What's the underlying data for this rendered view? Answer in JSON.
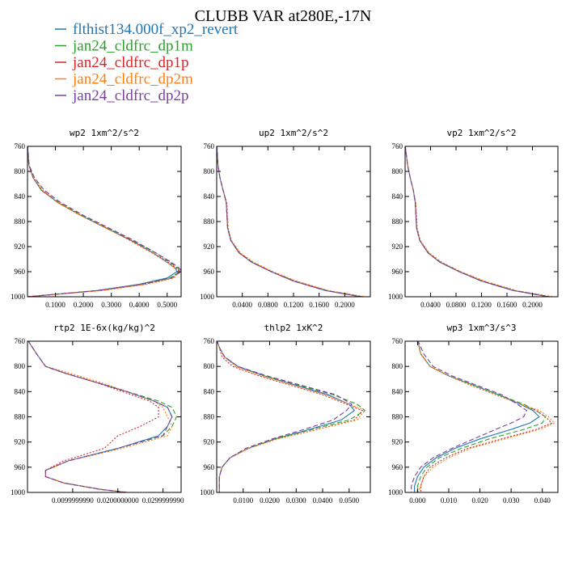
{
  "figure_title": "CLUBB VAR at280E,-17N",
  "colors": [
    "#1f77b4",
    "#2ca02c",
    "#d62728",
    "#ff7f0e",
    "#7b3fa0"
  ],
  "legend": [
    "flthist134.000f_xp2_revert",
    "jan24_cldfrc_dp1m",
    "jan24_cldfrc_dp1p",
    "jan24_cldfrc_dp2m",
    "jan24_cldfrc_dp2p"
  ],
  "chart_data": [
    {
      "type": "line",
      "title": "wp2  1xm^2/s^2",
      "xlim": [
        0,
        0.55
      ],
      "ylim": [
        760,
        1000
      ],
      "y_ticks": [
        760,
        800,
        840,
        880,
        920,
        960,
        1000
      ],
      "y_tick_labels": [
        "760",
        "800",
        "840",
        "880",
        "920",
        "960",
        "1000"
      ],
      "x_ticks": [
        0.1,
        0.2,
        0.3,
        0.4,
        0.5
      ],
      "x_tick_labels": [
        "0.1000",
        "0.2000",
        "0.3000",
        "0.4000",
        "0.5000"
      ],
      "y": [
        758,
        790,
        810,
        830,
        850,
        870,
        890,
        910,
        930,
        945,
        955,
        960,
        970,
        980,
        990,
        1000
      ],
      "series": [
        {
          "x": [
            0.0,
            0.005,
            0.02,
            0.05,
            0.11,
            0.19,
            0.28,
            0.37,
            0.45,
            0.5,
            0.53,
            0.535,
            0.5,
            0.4,
            0.25,
            0.0
          ]
        },
        {
          "x": [
            0.0,
            0.005,
            0.02,
            0.05,
            0.115,
            0.195,
            0.285,
            0.375,
            0.46,
            0.51,
            0.54,
            0.545,
            0.51,
            0.41,
            0.25,
            0.0
          ]
        },
        {
          "x": [
            0.0,
            0.005,
            0.02,
            0.05,
            0.11,
            0.19,
            0.28,
            0.37,
            0.45,
            0.505,
            0.535,
            0.545,
            0.52,
            0.42,
            0.26,
            0.0
          ]
        },
        {
          "x": [
            0.0,
            0.005,
            0.022,
            0.055,
            0.112,
            0.19,
            0.28,
            0.365,
            0.445,
            0.5,
            0.53,
            0.54,
            0.525,
            0.43,
            0.27,
            0.0
          ]
        },
        {
          "x": [
            0.0,
            0.006,
            0.025,
            0.06,
            0.12,
            0.2,
            0.29,
            0.38,
            0.46,
            0.515,
            0.545,
            0.55,
            0.515,
            0.41,
            0.25,
            0.0
          ]
        }
      ]
    },
    {
      "type": "line",
      "title": "up2  1xm^2/s^2",
      "xlim": [
        0,
        0.24
      ],
      "ylim": [
        760,
        1000
      ],
      "y_ticks": [
        760,
        800,
        840,
        880,
        920,
        960,
        1000
      ],
      "y_tick_labels": [
        "760",
        "800",
        "840",
        "880",
        "920",
        "960",
        "1000"
      ],
      "x_ticks": [
        0.04,
        0.08,
        0.12,
        0.16,
        0.2
      ],
      "x_tick_labels": [
        "0.0400",
        "0.0800",
        "0.1200",
        "0.1600",
        "0.2000"
      ],
      "y": [
        758,
        790,
        810,
        830,
        850,
        870,
        890,
        910,
        930,
        945,
        960,
        975,
        990,
        1000
      ],
      "series": [
        {
          "x": [
            0.0,
            0.002,
            0.005,
            0.01,
            0.015,
            0.016,
            0.017,
            0.022,
            0.035,
            0.055,
            0.085,
            0.12,
            0.17,
            0.225
          ]
        },
        {
          "x": [
            0.0,
            0.002,
            0.005,
            0.01,
            0.015,
            0.016,
            0.017,
            0.022,
            0.036,
            0.056,
            0.086,
            0.122,
            0.172,
            0.228
          ]
        },
        {
          "x": [
            0.0,
            0.002,
            0.005,
            0.01,
            0.015,
            0.016,
            0.017,
            0.022,
            0.035,
            0.055,
            0.086,
            0.121,
            0.171,
            0.227
          ]
        },
        {
          "x": [
            0.0,
            0.002,
            0.005,
            0.01,
            0.016,
            0.017,
            0.018,
            0.023,
            0.037,
            0.058,
            0.088,
            0.125,
            0.175,
            0.232
          ]
        },
        {
          "x": [
            0.0,
            0.002,
            0.005,
            0.01,
            0.015,
            0.016,
            0.017,
            0.022,
            0.035,
            0.055,
            0.085,
            0.12,
            0.17,
            0.226
          ]
        }
      ]
    },
    {
      "type": "line",
      "title": "vp2  1xm^2/s^2",
      "xlim": [
        0,
        0.24
      ],
      "ylim": [
        760,
        1000
      ],
      "y_ticks": [
        760,
        800,
        840,
        880,
        920,
        960,
        1000
      ],
      "y_tick_labels": [
        "760",
        "800",
        "840",
        "880",
        "920",
        "960",
        "1000"
      ],
      "x_ticks": [
        0.04,
        0.08,
        0.12,
        0.16,
        0.2
      ],
      "x_tick_labels": [
        "0.0400",
        "0.0800",
        "0.1200",
        "0.1600",
        "0.2000"
      ],
      "y": [
        758,
        790,
        810,
        830,
        850,
        870,
        890,
        910,
        930,
        945,
        960,
        975,
        990,
        1000
      ],
      "series": [
        {
          "x": [
            0.0,
            0.004,
            0.008,
            0.013,
            0.016,
            0.017,
            0.018,
            0.023,
            0.036,
            0.055,
            0.085,
            0.12,
            0.17,
            0.225
          ]
        },
        {
          "x": [
            0.0,
            0.004,
            0.008,
            0.013,
            0.016,
            0.017,
            0.018,
            0.023,
            0.037,
            0.056,
            0.086,
            0.122,
            0.172,
            0.228
          ]
        },
        {
          "x": [
            0.0,
            0.004,
            0.008,
            0.013,
            0.016,
            0.017,
            0.018,
            0.023,
            0.036,
            0.055,
            0.086,
            0.121,
            0.171,
            0.227
          ]
        },
        {
          "x": [
            0.0,
            0.004,
            0.008,
            0.013,
            0.017,
            0.018,
            0.019,
            0.024,
            0.038,
            0.058,
            0.088,
            0.125,
            0.175,
            0.232
          ]
        },
        {
          "x": [
            0.0,
            0.004,
            0.008,
            0.013,
            0.016,
            0.017,
            0.018,
            0.023,
            0.036,
            0.055,
            0.085,
            0.12,
            0.17,
            0.226
          ]
        }
      ]
    },
    {
      "type": "line",
      "title": "rtp2  1E-6x(kg/kg)^2",
      "xlim": [
        0,
        0.034
      ],
      "ylim": [
        760,
        1000
      ],
      "y_ticks": [
        760,
        800,
        840,
        880,
        920,
        960,
        1000
      ],
      "y_tick_labels": [
        "760",
        "800",
        "840",
        "880",
        "920",
        "960",
        "1000"
      ],
      "x_ticks": [
        0.01,
        0.02,
        0.03
      ],
      "x_tick_labels": [
        "0.0099999990",
        "0.0200000000",
        "0.0299999990"
      ],
      "y": [
        758,
        780,
        800,
        810,
        825,
        840,
        855,
        865,
        880,
        895,
        910,
        930,
        950,
        965,
        975,
        985,
        995,
        1000
      ],
      "series": [
        {
          "x": [
            0.0,
            0.002,
            0.004,
            0.008,
            0.015,
            0.022,
            0.028,
            0.031,
            0.032,
            0.031,
            0.029,
            0.02,
            0.009,
            0.004,
            0.004,
            0.008,
            0.016,
            0.022
          ]
        },
        {
          "x": [
            0.0,
            0.002,
            0.004,
            0.008,
            0.015,
            0.022,
            0.029,
            0.032,
            0.033,
            0.032,
            0.03,
            0.02,
            0.009,
            0.004,
            0.004,
            0.008,
            0.016,
            0.022
          ]
        },
        {
          "x": [
            0.0,
            0.002,
            0.004,
            0.008,
            0.015,
            0.021,
            0.027,
            0.029,
            0.029,
            0.025,
            0.02,
            0.017,
            0.008,
            0.004,
            0.004,
            0.008,
            0.016,
            0.022
          ]
        },
        {
          "x": [
            0.0,
            0.002,
            0.004,
            0.009,
            0.016,
            0.022,
            0.028,
            0.03,
            0.031,
            0.032,
            0.031,
            0.021,
            0.009,
            0.004,
            0.004,
            0.008,
            0.016,
            0.022
          ]
        },
        {
          "x": [
            0.0,
            0.002,
            0.004,
            0.008,
            0.015,
            0.022,
            0.028,
            0.031,
            0.032,
            0.031,
            0.03,
            0.02,
            0.009,
            0.004,
            0.004,
            0.008,
            0.016,
            0.022
          ]
        }
      ]
    },
    {
      "type": "line",
      "title": "thlp2  1xK^2",
      "xlim": [
        0,
        0.058
      ],
      "ylim": [
        760,
        1000
      ],
      "y_ticks": [
        760,
        800,
        840,
        880,
        920,
        960,
        1000
      ],
      "y_tick_labels": [
        "760",
        "800",
        "840",
        "880",
        "920",
        "960",
        "1000"
      ],
      "x_ticks": [
        0.01,
        0.02,
        0.03,
        0.04,
        0.05
      ],
      "x_tick_labels": [
        "0.0100",
        "0.0200",
        "0.0300",
        "0.0400",
        "0.0500"
      ],
      "y": [
        758,
        770,
        785,
        800,
        815,
        830,
        845,
        860,
        870,
        885,
        900,
        915,
        930,
        945,
        960,
        975,
        990,
        1000
      ],
      "series": [
        {
          "x": [
            0.0,
            0.001,
            0.003,
            0.008,
            0.018,
            0.03,
            0.042,
            0.05,
            0.052,
            0.047,
            0.035,
            0.022,
            0.012,
            0.005,
            0.002,
            0.001,
            0.001,
            0.001
          ]
        },
        {
          "x": [
            0.0,
            0.001,
            0.003,
            0.008,
            0.018,
            0.031,
            0.044,
            0.053,
            0.056,
            0.05,
            0.036,
            0.022,
            0.012,
            0.005,
            0.002,
            0.001,
            0.001,
            0.001
          ]
        },
        {
          "x": [
            0.0,
            0.001,
            0.002,
            0.006,
            0.016,
            0.028,
            0.04,
            0.049,
            0.055,
            0.052,
            0.038,
            0.023,
            0.012,
            0.005,
            0.002,
            0.001,
            0.001,
            0.001
          ]
        },
        {
          "x": [
            0.0,
            0.001,
            0.003,
            0.007,
            0.017,
            0.029,
            0.041,
            0.05,
            0.056,
            0.053,
            0.038,
            0.023,
            0.012,
            0.005,
            0.002,
            0.001,
            0.001,
            0.001
          ]
        },
        {
          "x": [
            0.0,
            0.001,
            0.003,
            0.008,
            0.019,
            0.032,
            0.045,
            0.051,
            0.049,
            0.044,
            0.033,
            0.021,
            0.011,
            0.005,
            0.002,
            0.001,
            0.001,
            0.001
          ]
        }
      ]
    },
    {
      "type": "line",
      "title": "wp3  1xm^3/s^3",
      "xlim": [
        -0.004,
        0.045
      ],
      "ylim": [
        760,
        1000
      ],
      "y_ticks": [
        760,
        800,
        840,
        880,
        920,
        960,
        1000
      ],
      "y_tick_labels": [
        "760",
        "800",
        "840",
        "880",
        "920",
        "960",
        "1000"
      ],
      "x_ticks": [
        0.0,
        0.01,
        0.02,
        0.03,
        0.04
      ],
      "x_tick_labels": [
        "0.000",
        "0.010",
        "0.020",
        "0.030",
        "0.040"
      ],
      "y": [
        758,
        780,
        800,
        815,
        830,
        845,
        860,
        870,
        880,
        890,
        900,
        915,
        930,
        945,
        960,
        975,
        990,
        1000
      ],
      "series": [
        {
          "x": [
            0.0,
            0.001,
            0.004,
            0.01,
            0.018,
            0.026,
            0.033,
            0.037,
            0.039,
            0.036,
            0.03,
            0.02,
            0.012,
            0.006,
            0.002,
            0.0,
            -0.001,
            -0.001
          ]
        },
        {
          "x": [
            0.0,
            0.001,
            0.004,
            0.01,
            0.018,
            0.026,
            0.034,
            0.038,
            0.041,
            0.04,
            0.034,
            0.023,
            0.014,
            0.007,
            0.003,
            0.001,
            0.0,
            0.0
          ]
        },
        {
          "x": [
            0.0,
            0.001,
            0.004,
            0.01,
            0.017,
            0.025,
            0.033,
            0.038,
            0.041,
            0.043,
            0.038,
            0.027,
            0.016,
            0.009,
            0.004,
            0.002,
            0.001,
            0.001
          ]
        },
        {
          "x": [
            0.0,
            0.001,
            0.004,
            0.01,
            0.017,
            0.025,
            0.033,
            0.039,
            0.042,
            0.044,
            0.039,
            0.028,
            0.017,
            0.01,
            0.005,
            0.002,
            0.001,
            0.0
          ]
        },
        {
          "x": [
            0.0,
            0.002,
            0.005,
            0.011,
            0.019,
            0.027,
            0.032,
            0.035,
            0.034,
            0.03,
            0.025,
            0.018,
            0.011,
            0.005,
            0.001,
            -0.001,
            -0.002,
            -0.002
          ]
        }
      ]
    }
  ]
}
